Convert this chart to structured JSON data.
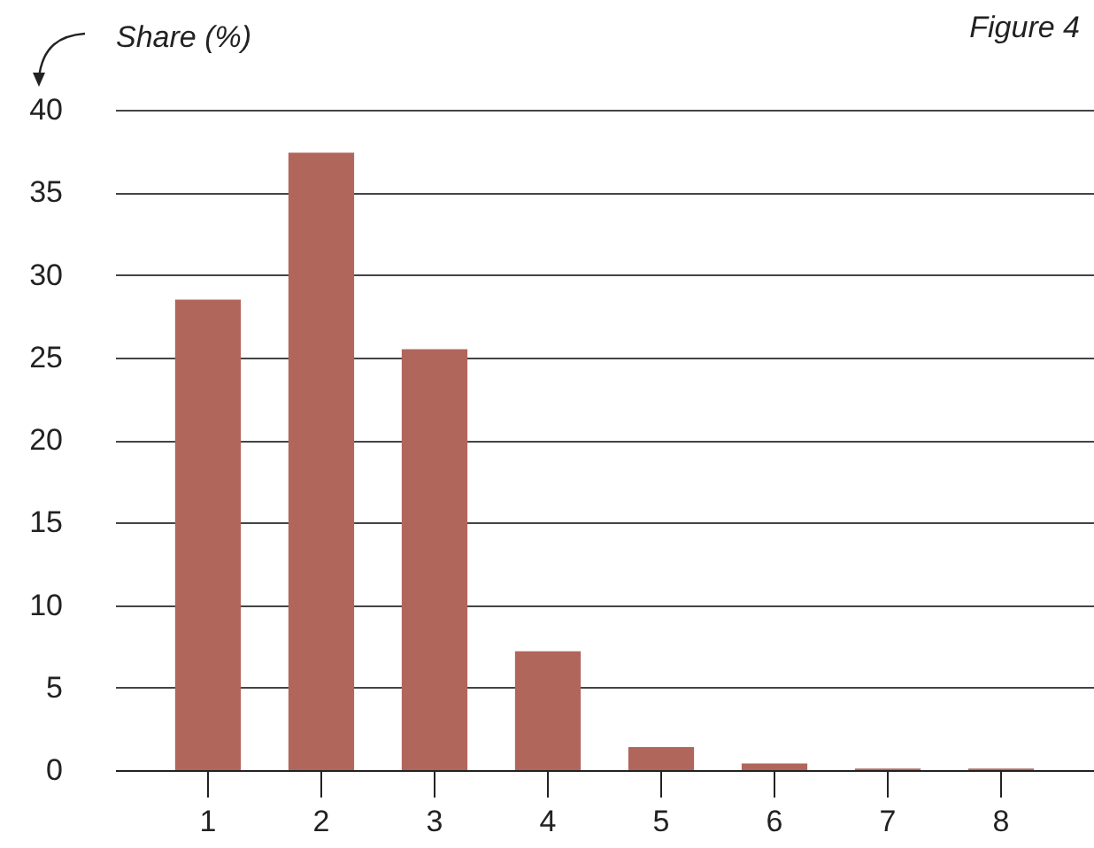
{
  "chart_data": {
    "type": "bar",
    "ylabel": "Share (%)",
    "annotations": [
      "Figure 4"
    ],
    "categories": [
      "1",
      "2",
      "3",
      "4",
      "5",
      "6",
      "7",
      "8"
    ],
    "values": [
      28.5,
      37.4,
      25.5,
      7.2,
      1.4,
      0.4,
      0.1,
      0.1
    ],
    "color": "#b1665b",
    "ylim": [
      0,
      40
    ],
    "yticks": [
      0,
      5,
      10,
      15,
      20,
      25,
      30,
      35,
      40
    ],
    "grid": "y"
  }
}
